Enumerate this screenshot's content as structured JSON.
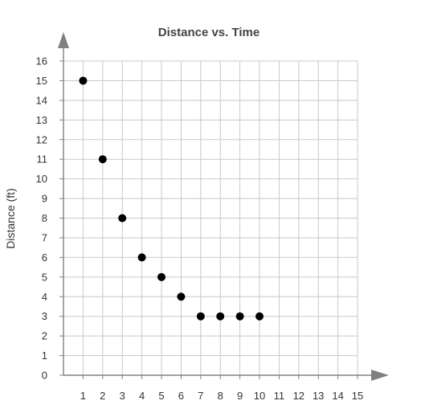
{
  "chart_data": {
    "type": "scatter",
    "title": "Distance vs. Time",
    "xlabel": "",
    "ylabel": "Distance (ft)",
    "xlim": [
      0,
      15
    ],
    "ylim": [
      0,
      16
    ],
    "xticks": [
      1,
      2,
      3,
      4,
      5,
      6,
      7,
      8,
      9,
      10,
      11,
      12,
      13,
      14,
      15
    ],
    "yticks": [
      0,
      1,
      2,
      3,
      4,
      5,
      6,
      7,
      8,
      9,
      10,
      11,
      12,
      13,
      14,
      15,
      16
    ],
    "grid": true,
    "point_color": "#000000",
    "axis_color": "#808080",
    "grid_color": "#c8c8c8",
    "series": [
      {
        "x": [
          1,
          2,
          3,
          4,
          5,
          6,
          7,
          8,
          9,
          10
        ],
        "y": [
          15,
          11,
          8,
          6,
          5,
          4,
          3,
          3,
          3,
          3
        ]
      }
    ]
  }
}
